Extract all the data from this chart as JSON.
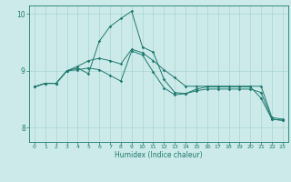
{
  "title": "",
  "xlabel": "Humidex (Indice chaleur)",
  "bg_color": "#cdeaea",
  "grid_color": "#a8d5d1",
  "line_color": "#1e7a6e",
  "xlim": [
    -0.5,
    23.5
  ],
  "ylim": [
    7.75,
    10.15
  ],
  "yticks": [
    8,
    9,
    10
  ],
  "xticks": [
    0,
    1,
    2,
    3,
    4,
    5,
    6,
    7,
    8,
    9,
    10,
    11,
    12,
    13,
    14,
    15,
    16,
    17,
    18,
    19,
    20,
    21,
    22,
    23
  ],
  "series1_x": [
    0,
    1,
    2,
    3,
    4,
    5,
    6,
    7,
    8,
    9,
    10,
    11,
    12,
    13,
    14,
    15,
    16,
    17,
    18,
    19,
    20,
    21,
    22,
    23
  ],
  "series1_y": [
    8.72,
    8.78,
    8.78,
    9.0,
    9.08,
    9.18,
    9.22,
    9.18,
    9.12,
    9.38,
    9.32,
    9.18,
    9.02,
    8.88,
    8.73,
    8.73,
    8.73,
    8.73,
    8.73,
    8.73,
    8.73,
    8.73,
    8.18,
    8.15
  ],
  "series2_x": [
    0,
    1,
    2,
    3,
    4,
    5,
    6,
    7,
    8,
    9,
    10,
    11,
    12,
    13,
    14,
    15,
    16,
    17,
    18,
    19,
    20,
    21,
    22,
    23
  ],
  "series2_y": [
    8.72,
    8.78,
    8.78,
    9.0,
    9.05,
    8.95,
    9.52,
    9.78,
    9.92,
    10.05,
    9.42,
    9.33,
    8.85,
    8.62,
    8.6,
    8.68,
    8.72,
    8.72,
    8.72,
    8.72,
    8.72,
    8.52,
    8.15,
    8.13
  ],
  "series3_x": [
    0,
    1,
    2,
    3,
    4,
    5,
    6,
    7,
    8,
    9,
    10,
    11,
    12,
    13,
    14,
    15,
    16,
    17,
    18,
    19,
    20,
    21,
    22,
    23
  ],
  "series3_y": [
    8.72,
    8.78,
    8.78,
    9.0,
    9.02,
    9.05,
    9.02,
    8.92,
    8.82,
    9.35,
    9.28,
    8.98,
    8.7,
    8.58,
    8.6,
    8.65,
    8.68,
    8.68,
    8.68,
    8.68,
    8.68,
    8.62,
    8.15,
    8.13
  ]
}
